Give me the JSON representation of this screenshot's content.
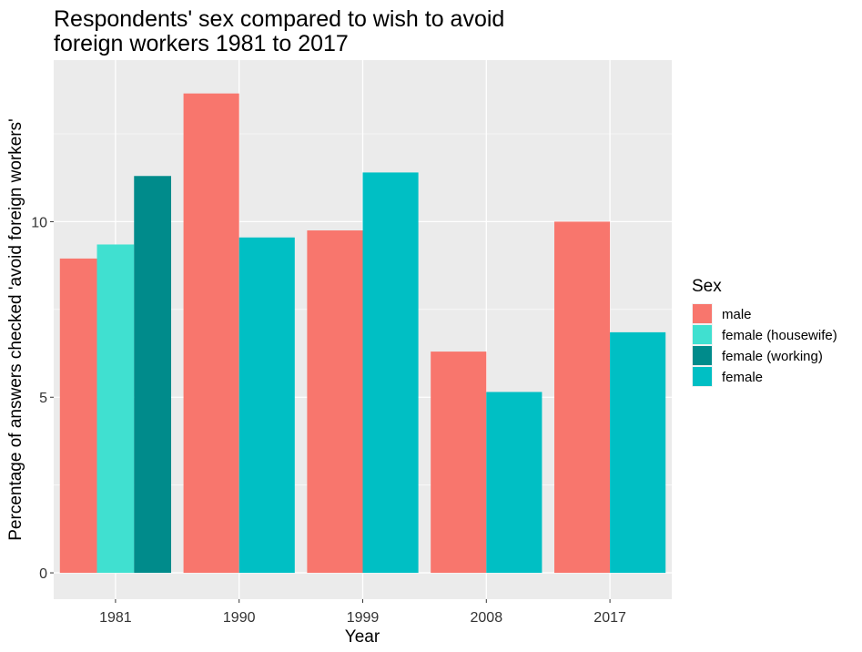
{
  "chart_data": {
    "type": "bar",
    "title": "Respondents' sex compared to wish to avoid foreign workers 1981 to 2017",
    "title_lines": [
      "Respondents' sex compared to wish to avoid",
      "foreign workers 1981 to 2017"
    ],
    "xlabel": "Year",
    "ylabel": "Percentage of answers checked 'avoid foreign workers'",
    "categories": [
      "1981",
      "1990",
      "1999",
      "2008",
      "2017"
    ],
    "ylim": [
      -0.75,
      14.6
    ],
    "yticks": [
      0,
      5,
      10
    ],
    "grid": true,
    "legend": {
      "title": "Sex",
      "placement": "right",
      "items": [
        {
          "label": "male",
          "color": "#F8766D"
        },
        {
          "label": "female (housewife)",
          "color": "#40E0D0"
        },
        {
          "label": "female (working)",
          "color": "#008B8B"
        },
        {
          "label": "female",
          "color": "#00BFC4"
        }
      ]
    },
    "bars": [
      {
        "category": "1981",
        "series": "male",
        "value": 8.95,
        "color": "#F8766D"
      },
      {
        "category": "1981",
        "series": "female (housewife)",
        "value": 9.35,
        "color": "#40E0D0"
      },
      {
        "category": "1981",
        "series": "female (working)",
        "value": 11.3,
        "color": "#008B8B"
      },
      {
        "category": "1990",
        "series": "male",
        "value": 13.65,
        "color": "#F8766D"
      },
      {
        "category": "1990",
        "series": "female",
        "value": 9.55,
        "color": "#00BFC4"
      },
      {
        "category": "1999",
        "series": "male",
        "value": 9.75,
        "color": "#F8766D"
      },
      {
        "category": "1999",
        "series": "female",
        "value": 11.4,
        "color": "#00BFC4"
      },
      {
        "category": "2008",
        "series": "male",
        "value": 6.3,
        "color": "#F8766D"
      },
      {
        "category": "2008",
        "series": "female",
        "value": 5.15,
        "color": "#00BFC4"
      },
      {
        "category": "2017",
        "series": "male",
        "value": 10.0,
        "color": "#F8766D"
      },
      {
        "category": "2017",
        "series": "female",
        "value": 6.85,
        "color": "#00BFC4"
      }
    ]
  }
}
